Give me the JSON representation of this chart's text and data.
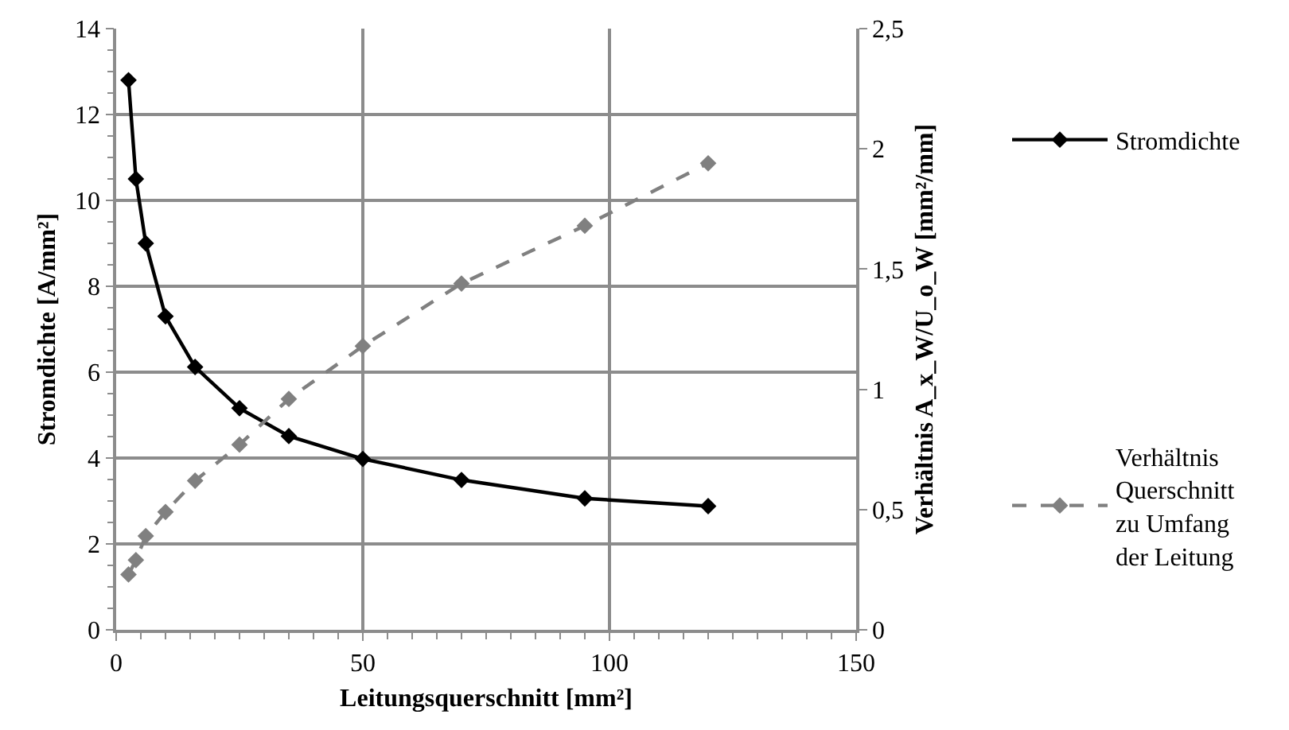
{
  "chart_data": {
    "type": "line",
    "xlabel": "Leitungsquerschnitt [mm²]",
    "ylabel": "Stromdichte [A/mm²]",
    "y2label": "Verhältnis A_x_W/U_o_W [mm²/mm]",
    "x": [
      2.5,
      4,
      6,
      10,
      16,
      25,
      35,
      50,
      70,
      95,
      120
    ],
    "series": [
      {
        "name": "Stromdichte",
        "color": "#000000",
        "line_style": "solid",
        "values": [
          12.8,
          10.5,
          9.0,
          7.3,
          6.12,
          5.16,
          4.51,
          3.98,
          3.49,
          3.06,
          2.88
        ]
      },
      {
        "name": "Verhältnis\nQuerschnitt\nzu Umfang\nder Leitung",
        "color": "#808080",
        "line_style": "dashed",
        "axis": "y2",
        "values": [
          0.23,
          0.29,
          0.39,
          0.49,
          0.62,
          0.77,
          0.96,
          1.18,
          1.44,
          1.68,
          1.94
        ]
      }
    ],
    "xlim": [
      0,
      150
    ],
    "xticks": [
      0,
      {
        "value": 5,
        "label": null
      },
      {
        "value": 10,
        "label": null
      },
      {
        "value": 15,
        "label": null
      },
      {
        "value": 20,
        "label": null
      },
      {
        "value": 25,
        "label": null
      },
      {
        "value": 30,
        "label": null
      },
      {
        "value": 35,
        "label": null
      },
      {
        "value": 40,
        "label": null
      },
      {
        "value": 45,
        "label": null
      },
      50,
      {
        "value": 55,
        "label": null
      },
      {
        "value": 60,
        "label": null
      },
      {
        "value": 65,
        "label": null
      },
      {
        "value": 70,
        "label": null
      },
      {
        "value": 75,
        "label": null
      },
      {
        "value": 80,
        "label": null
      },
      {
        "value": 85,
        "label": null
      },
      {
        "value": 90,
        "label": null
      },
      {
        "value": 95,
        "label": null
      },
      100,
      {
        "value": 105,
        "label": null
      },
      {
        "value": 110,
        "label": null
      },
      {
        "value": 115,
        "label": null
      },
      {
        "value": 120,
        "label": null
      },
      {
        "value": 125,
        "label": null
      },
      {
        "value": 130,
        "label": null
      },
      {
        "value": 135,
        "label": null
      },
      {
        "value": 140,
        "label": null
      },
      {
        "value": 145,
        "label": null
      },
      150
    ],
    "ylim": [
      0,
      14
    ],
    "yticks": [
      0,
      {
        "value": 0.5,
        "label": null
      },
      {
        "value": 1,
        "label": null
      },
      {
        "value": 1.5,
        "label": null
      },
      2,
      {
        "value": 2.5,
        "label": null
      },
      {
        "value": 3,
        "label": null
      },
      {
        "value": 3.5,
        "label": null
      },
      4,
      {
        "value": 4.5,
        "label": null
      },
      {
        "value": 5,
        "label": null
      },
      {
        "value": 5.5,
        "label": null
      },
      6,
      {
        "value": 6.5,
        "label": null
      },
      {
        "value": 7,
        "label": null
      },
      {
        "value": 7.5,
        "label": null
      },
      8,
      {
        "value": 8.5,
        "label": null
      },
      {
        "value": 9,
        "label": null
      },
      {
        "value": 9.5,
        "label": null
      },
      10,
      {
        "value": 10.5,
        "label": null
      },
      {
        "value": 11,
        "label": null
      },
      {
        "value": 11.5,
        "label": null
      },
      12,
      {
        "value": 12.5,
        "label": null
      },
      {
        "value": 13,
        "label": null
      },
      {
        "value": 13.5,
        "label": null
      },
      14
    ],
    "y2lim": [
      0,
      2.5
    ],
    "y2ticks": [
      0,
      {
        "value": 0.5,
        "label": "0,5"
      },
      1,
      {
        "value": 1.5,
        "label": "1,5"
      },
      2,
      {
        "value": 2.5,
        "label": "2,5"
      }
    ],
    "grid": true,
    "legend": "right",
    "marker": "diamond"
  }
}
